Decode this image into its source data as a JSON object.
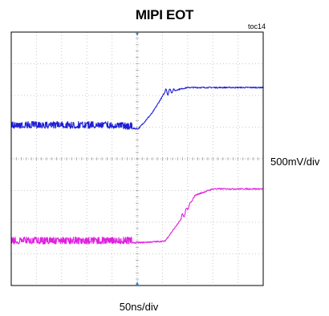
{
  "chart_data": {
    "type": "line",
    "title": "MIPI EOT",
    "tag": "toc14",
    "xlabel": "50ns/div",
    "ylabel": "500mV/div",
    "grid": true,
    "x_divisions": 10,
    "y_divisions": 8,
    "xlim": [
      0,
      10
    ],
    "ylim": [
      0,
      8
    ],
    "series": [
      {
        "color": "#1f1fd6",
        "x": [
          0,
          1,
          2,
          3,
          4,
          5,
          5.05,
          5.6,
          6.1,
          7,
          8,
          9,
          10
        ],
        "y": [
          5.0,
          5.0,
          5.0,
          5.0,
          5.0,
          4.95,
          4.95,
          5.45,
          6.1,
          6.25,
          6.25,
          6.25,
          6.25
        ],
        "noise_until_x": 4.8
      },
      {
        "color": "#e020e0",
        "x": [
          0,
          1,
          2,
          3,
          4,
          5,
          6.1,
          6.75,
          7.3,
          8,
          9,
          10
        ],
        "y": [
          1.35,
          1.35,
          1.35,
          1.35,
          1.35,
          1.35,
          1.4,
          2.1,
          2.85,
          3.05,
          3.05,
          3.05
        ],
        "noise_until_x": 4.8
      }
    ]
  },
  "colors": {
    "grid": "#c8c8c8",
    "frame": "#000000",
    "trigger_marker": "#2a8fd6"
  }
}
